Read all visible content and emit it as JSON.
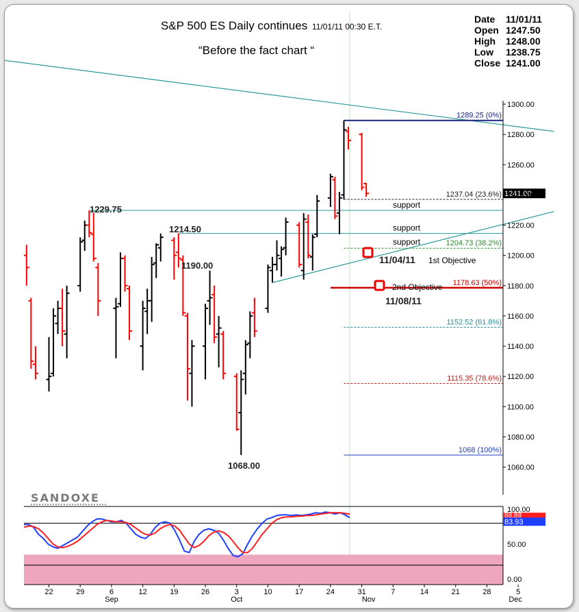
{
  "header": {
    "title": "S&P 500 ES Daily continues",
    "timestamp": "11/01/11 00:30 E.T.",
    "subtitle": "“Before the fact chart “"
  },
  "info_box": {
    "rows": [
      {
        "label": "Date",
        "value": "11/01/11"
      },
      {
        "label": "Open",
        "value": "1247.50"
      },
      {
        "label": "High",
        "value": "1248.00"
      },
      {
        "label": "Low",
        "value": "1238.75"
      },
      {
        "label": "Close",
        "value": "1241.00"
      }
    ]
  },
  "watermark": "SANDOXE",
  "colors": {
    "up": "#000000",
    "down": "#ff0000",
    "trendline": "#2a9a9a",
    "fib_0": "#1a237e",
    "fib_236": "#222222",
    "fib_382": "#2e8b2e",
    "fib_50": "#cc0000",
    "fib_618": "#2a8a9a",
    "fib_786": "#b22222",
    "fib_100": "#1f3fbf",
    "stoch_k": "#1f3fff",
    "stoch_d": "#ff1f1f",
    "oversold_zone": "#eea6bf"
  },
  "chart_data": [
    {
      "type": "ohlc",
      "title": "S&P 500 ES Daily continues",
      "ylim": [
        1040,
        1305
      ],
      "yticks": [
        "1300.00",
        "1280.00",
        "1260.00",
        "1240.00",
        "1220.00",
        "1200.00",
        "1180.00",
        "1160.00",
        "1140.00",
        "1120.00",
        "1100.00",
        "1080.00",
        "1060.00"
      ],
      "x_tick_labels": [
        "22",
        "29",
        "6",
        "12",
        "19",
        "26",
        "3",
        "10",
        "17",
        "24",
        "31",
        "7",
        "14",
        "21",
        "28",
        "5"
      ],
      "month_labels": [
        "Sep",
        "Oct",
        "Nov",
        "Dec"
      ],
      "last_price_label": "1241.00",
      "bars": [
        {
          "date": "2011-08-17",
          "o": 1200,
          "h": 1207,
          "l": 1180,
          "c": 1192
        },
        {
          "date": "2011-08-18",
          "o": 1170,
          "h": 1172,
          "l": 1125,
          "c": 1130
        },
        {
          "date": "2011-08-19",
          "o": 1128,
          "h": 1140,
          "l": 1118,
          "c": 1122
        },
        {
          "date": "2011-08-22",
          "o": 1118,
          "h": 1146,
          "l": 1110,
          "c": 1120
        },
        {
          "date": "2011-08-23",
          "o": 1122,
          "h": 1165,
          "l": 1120,
          "c": 1160
        },
        {
          "date": "2011-08-24",
          "o": 1155,
          "h": 1170,
          "l": 1148,
          "c": 1165
        },
        {
          "date": "2011-08-25",
          "o": 1165,
          "h": 1178,
          "l": 1140,
          "c": 1150
        },
        {
          "date": "2011-08-26",
          "o": 1148,
          "h": 1180,
          "l": 1132,
          "c": 1175
        },
        {
          "date": "2011-08-29",
          "o": 1180,
          "h": 1212,
          "l": 1176,
          "c": 1209
        },
        {
          "date": "2011-08-30",
          "o": 1210,
          "h": 1223,
          "l": 1203,
          "c": 1220
        },
        {
          "date": "2011-08-31",
          "o": 1220,
          "h": 1229.75,
          "l": 1212,
          "c": 1215
        },
        {
          "date": "2011-09-01",
          "o": 1214,
          "h": 1228,
          "l": 1196,
          "c": 1198
        },
        {
          "date": "2011-09-02",
          "o": 1192,
          "h": 1195,
          "l": 1160,
          "c": 1170
        },
        {
          "date": "2011-09-06",
          "o": 1165,
          "h": 1172,
          "l": 1132,
          "c": 1166
        },
        {
          "date": "2011-09-07",
          "o": 1168,
          "h": 1202,
          "l": 1166,
          "c": 1198
        },
        {
          "date": "2011-09-08",
          "o": 1198,
          "h": 1200,
          "l": 1176,
          "c": 1180
        },
        {
          "date": "2011-09-09",
          "o": 1178,
          "h": 1180,
          "l": 1144,
          "c": 1150
        },
        {
          "date": "2011-09-12",
          "o": 1140,
          "h": 1170,
          "l": 1124,
          "c": 1165
        },
        {
          "date": "2011-09-13",
          "o": 1163,
          "h": 1178,
          "l": 1148,
          "c": 1170
        },
        {
          "date": "2011-09-14",
          "o": 1170,
          "h": 1199,
          "l": 1156,
          "c": 1194
        },
        {
          "date": "2011-09-15",
          "o": 1195,
          "h": 1208,
          "l": 1185,
          "c": 1207
        },
        {
          "date": "2011-09-16",
          "o": 1205,
          "h": 1214.5,
          "l": 1196,
          "c": 1212
        },
        {
          "date": "2011-09-19",
          "o": 1210,
          "h": 1212,
          "l": 1184,
          "c": 1200
        },
        {
          "date": "2011-09-20",
          "o": 1202,
          "h": 1214.5,
          "l": 1192,
          "c": 1198
        },
        {
          "date": "2011-09-21",
          "o": 1197,
          "h": 1200,
          "l": 1160,
          "c": 1162
        },
        {
          "date": "2011-09-22",
          "o": 1160,
          "h": 1162,
          "l": 1104,
          "c": 1125
        },
        {
          "date": "2011-09-23",
          "o": 1122,
          "h": 1144,
          "l": 1100,
          "c": 1140
        },
        {
          "date": "2011-09-26",
          "o": 1140,
          "h": 1168,
          "l": 1118,
          "c": 1165
        },
        {
          "date": "2011-09-27",
          "o": 1170,
          "h": 1190,
          "l": 1154,
          "c": 1172
        },
        {
          "date": "2011-09-28",
          "o": 1174,
          "h": 1180,
          "l": 1142,
          "c": 1146
        },
        {
          "date": "2011-09-29",
          "o": 1148,
          "h": 1160,
          "l": 1126,
          "c": 1152
        },
        {
          "date": "2011-09-30",
          "o": 1148,
          "h": 1150,
          "l": 1118,
          "c": 1122
        },
        {
          "date": "2011-10-03",
          "o": 1120,
          "h": 1122,
          "l": 1084,
          "c": 1085
        },
        {
          "date": "2011-10-04",
          "o": 1096,
          "h": 1124,
          "l": 1068,
          "c": 1118
        },
        {
          "date": "2011-10-05",
          "o": 1122,
          "h": 1144,
          "l": 1108,
          "c": 1141
        },
        {
          "date": "2011-10-06",
          "o": 1142,
          "h": 1163,
          "l": 1132,
          "c": 1160
        },
        {
          "date": "2011-10-07",
          "o": 1162,
          "h": 1172,
          "l": 1146,
          "c": 1150
        },
        {
          "date": "2011-10-10",
          "o": 1165,
          "h": 1194,
          "l": 1162,
          "c": 1192
        },
        {
          "date": "2011-10-11",
          "o": 1190,
          "h": 1199,
          "l": 1182,
          "c": 1194
        },
        {
          "date": "2011-10-12",
          "o": 1194,
          "h": 1210,
          "l": 1190,
          "c": 1200
        },
        {
          "date": "2011-10-13",
          "o": 1198,
          "h": 1206,
          "l": 1186,
          "c": 1204
        },
        {
          "date": "2011-10-14",
          "o": 1205,
          "h": 1225,
          "l": 1200,
          "c": 1222
        },
        {
          "date": "2011-10-17",
          "o": 1220,
          "h": 1222,
          "l": 1192,
          "c": 1194
        },
        {
          "date": "2011-10-18",
          "o": 1190,
          "h": 1228,
          "l": 1184,
          "c": 1224
        },
        {
          "date": "2011-10-19",
          "o": 1222,
          "h": 1227,
          "l": 1198,
          "c": 1200
        },
        {
          "date": "2011-10-20",
          "o": 1199,
          "h": 1214,
          "l": 1190,
          "c": 1212
        },
        {
          "date": "2011-10-21",
          "o": 1214,
          "h": 1240,
          "l": 1212,
          "c": 1236
        },
        {
          "date": "2011-10-24",
          "o": 1238,
          "h": 1254,
          "l": 1232,
          "c": 1252
        },
        {
          "date": "2011-10-25",
          "o": 1250,
          "h": 1252,
          "l": 1224,
          "c": 1226
        },
        {
          "date": "2011-10-26",
          "o": 1228,
          "h": 1242,
          "l": 1214,
          "c": 1238
        },
        {
          "date": "2011-10-27",
          "o": 1240,
          "h": 1289.25,
          "l": 1237,
          "c": 1283
        },
        {
          "date": "2011-10-28",
          "o": 1282,
          "h": 1285,
          "l": 1270,
          "c": 1276
        },
        {
          "date": "2011-10-31",
          "o": 1280,
          "h": 1281,
          "l": 1243,
          "c": 1245
        },
        {
          "date": "2011-11-01",
          "o": 1247.5,
          "h": 1248,
          "l": 1238.75,
          "c": 1241
        }
      ],
      "fibonacci": [
        {
          "price": 1289.25,
          "label": "1289.25 (0%)",
          "key": "fib_0"
        },
        {
          "price": 1237.04,
          "label": "1237.04 (23.6%)",
          "key": "fib_236"
        },
        {
          "price": 1204.73,
          "label": "1204.73 (38.2%)",
          "key": "fib_382"
        },
        {
          "price": 1178.63,
          "label": "1178.63 (50%)",
          "key": "fib_50"
        },
        {
          "price": 1152.52,
          "label": "1152.52 (61.8%)",
          "key": "fib_618"
        },
        {
          "price": 1115.35,
          "label": "1115.35 (78.6%)",
          "key": "fib_786"
        },
        {
          "price": 1068,
          "label": "1068 (100%)",
          "key": "fib_100"
        }
      ],
      "support_lines": [
        {
          "price": 1229.75,
          "label": "support"
        },
        {
          "price": 1214.5,
          "label": "support"
        }
      ],
      "trendlines": [
        {
          "from": {
            "date": "2011-08-12",
            "price": 1329
          },
          "to": {
            "date": "2011-12-13",
            "price": 1282
          }
        },
        {
          "from": {
            "date": "2011-10-11",
            "price": 1182
          },
          "to": {
            "date": "2011-12-13",
            "price": 1229
          }
        }
      ],
      "annotations": {
        "price_labels": [
          "1229.75",
          "1214.50",
          "1190.00",
          "1068.00"
        ],
        "support_label_3": "support",
        "objective_1_label": "1st Objective",
        "objective_1_date": "11/04/11",
        "objective_2_label": "2nd Objective",
        "objective_2_date": "11/08/11"
      }
    },
    {
      "type": "line",
      "title": "",
      "ylim": [
        0,
        100
      ],
      "yticks": [
        "100.00",
        "50.00",
        "0.00"
      ],
      "value_labels": [
        "88.88",
        "83.93"
      ],
      "oversold_band": [
        0,
        35
      ],
      "series": [
        {
          "key": "stoch_k",
          "values": [
            78,
            78,
            74,
            64,
            58,
            50,
            46,
            44,
            48,
            52,
            56,
            60,
            68,
            76,
            82,
            86,
            86,
            84,
            82,
            82,
            84,
            80,
            72,
            64,
            60,
            58,
            64,
            74,
            80,
            82,
            80,
            70,
            56,
            40,
            38,
            54,
            64,
            70,
            72,
            70,
            66,
            56,
            44,
            34,
            32,
            36,
            50,
            62,
            72,
            80,
            86,
            88,
            91,
            92,
            92,
            91,
            92,
            91,
            92,
            93,
            95,
            94,
            96,
            95,
            93,
            95,
            92,
            88
          ]
        },
        {
          "key": "stoch_d",
          "values": [
            74,
            76,
            75,
            72,
            66,
            58,
            50,
            46,
            45,
            47,
            50,
            54,
            60,
            66,
            72,
            78,
            82,
            84,
            83,
            82,
            82,
            81,
            78,
            73,
            68,
            64,
            63,
            66,
            72,
            76,
            78,
            76,
            70,
            60,
            50,
            45,
            48,
            54,
            62,
            67,
            69,
            67,
            62,
            54,
            45,
            38,
            38,
            44,
            54,
            64,
            72,
            80,
            85,
            88,
            89,
            89,
            90,
            90,
            91,
            91,
            92,
            93,
            94,
            95,
            95,
            95,
            94,
            93
          ]
        }
      ]
    }
  ]
}
